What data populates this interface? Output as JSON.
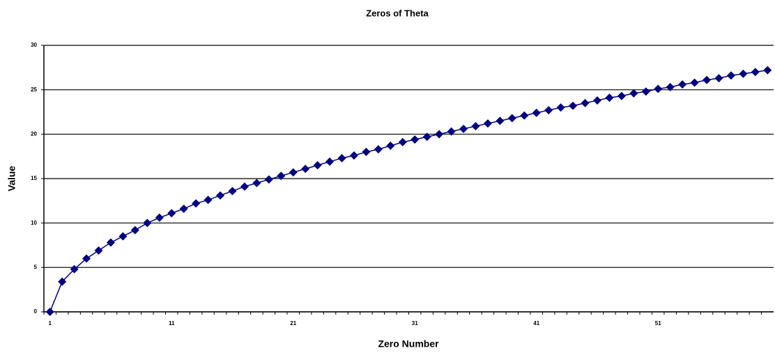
{
  "chart_data": {
    "type": "line",
    "title": "Zeros of Theta",
    "x_label": "Zero Number",
    "y_label": "Value",
    "categories": [
      1,
      null,
      null,
      null,
      null,
      null,
      null,
      null,
      null,
      null,
      11,
      null,
      null,
      null,
      null,
      null,
      null,
      null,
      null,
      null,
      21,
      null,
      null,
      null,
      null,
      null,
      null,
      null,
      null,
      null,
      31,
      null,
      null,
      null,
      null,
      null,
      null,
      null,
      null,
      null,
      41,
      null,
      null,
      null,
      null,
      null,
      null,
      null,
      null,
      null,
      51,
      null,
      null,
      null,
      null,
      null,
      null,
      null,
      null,
      null
    ],
    "series": [
      {
        "name": "Value",
        "color": "#000080",
        "values": [
          0,
          3.4,
          4.8,
          6.0,
          6.9,
          7.8,
          8.5,
          9.2,
          10.0,
          10.6,
          11.1,
          11.6,
          12.2,
          12.6,
          13.1,
          13.6,
          14.1,
          14.5,
          14.9,
          15.3,
          15.7,
          16.1,
          16.5,
          16.9,
          17.3,
          17.6,
          18.0,
          18.3,
          18.7,
          19.1,
          19.4,
          19.7,
          20.0,
          20.3,
          20.6,
          20.9,
          21.2,
          21.5,
          21.8,
          22.1,
          22.4,
          22.7,
          23.0,
          23.2,
          23.5,
          23.8,
          24.1,
          24.3,
          24.6,
          24.8,
          25.1,
          25.3,
          25.6,
          25.8,
          26.1,
          26.3,
          26.6,
          26.8,
          27.0,
          27.2
        ]
      }
    ],
    "ylim": [
      0,
      30
    ],
    "yticks": [
      0,
      5,
      10,
      15,
      20,
      25,
      30
    ],
    "grid": true
  }
}
